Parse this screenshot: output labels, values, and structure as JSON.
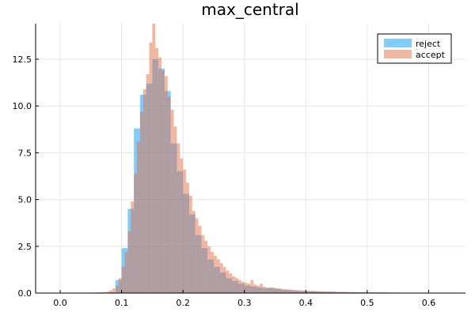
{
  "chart_data": {
    "type": "histogram",
    "title": "max_central",
    "xlabel": "",
    "ylabel": "",
    "xlim": [
      -0.04,
      0.66
    ],
    "ylim": [
      0,
      14.4
    ],
    "grid": true,
    "legend_position": "top-right",
    "bin_edges": [
      0.04,
      0.05,
      0.06,
      0.07,
      0.08,
      0.09,
      0.1,
      0.11,
      0.12,
      0.13,
      0.14,
      0.15,
      0.16,
      0.17,
      0.18,
      0.19,
      0.2,
      0.21,
      0.22,
      0.23,
      0.24,
      0.25,
      0.26,
      0.27,
      0.28,
      0.29,
      0.3,
      0.31,
      0.32,
      0.33,
      0.34,
      0.35,
      0.36,
      0.37,
      0.38,
      0.39,
      0.4,
      0.41,
      0.42,
      0.43,
      0.44,
      0.45,
      0.46,
      0.47,
      0.48,
      0.49,
      0.5,
      0.51,
      0.52,
      0.53,
      0.54,
      0.55,
      0.56,
      0.57,
      0.58,
      0.59,
      0.6,
      0.61,
      0.62,
      0.63,
      0.64
    ],
    "x_ticks": [
      {
        "value": 0.0,
        "label": "0.0"
      },
      {
        "value": 0.1,
        "label": "0.1"
      },
      {
        "value": 0.2,
        "label": "0.2"
      },
      {
        "value": 0.3,
        "label": "0.3"
      },
      {
        "value": 0.4,
        "label": "0.4"
      },
      {
        "value": 0.5,
        "label": "0.5"
      },
      {
        "value": 0.6,
        "label": "0.6"
      }
    ],
    "y_ticks": [
      {
        "value": 0.0,
        "label": "0.0"
      },
      {
        "value": 2.5,
        "label": "2.5"
      },
      {
        "value": 5.0,
        "label": "5.0"
      },
      {
        "value": 7.5,
        "label": "7.5"
      },
      {
        "value": 10.0,
        "label": "10.0"
      },
      {
        "value": 12.5,
        "label": "12.5"
      }
    ],
    "series": [
      {
        "name": "reject",
        "color": "#0099ff",
        "opacity": 0.5,
        "bin_width": 0.01,
        "values": [
          0,
          0,
          0,
          0,
          0.05,
          0.7,
          2.4,
          4.5,
          8.8,
          10.6,
          11.2,
          12.5,
          12.0,
          10.8,
          8.0,
          6.5,
          5.3,
          4.2,
          3.1,
          2.4,
          1.8,
          1.4,
          1.1,
          0.8,
          0.65,
          0.5,
          0.4,
          0.35,
          0.3,
          0.25,
          0.28,
          0.22,
          0.18,
          0.15,
          0.12,
          0.1,
          0.1,
          0.09,
          0.08,
          0.07,
          0.06,
          0.05,
          0.05,
          0.04,
          0.04,
          0.04,
          0.03,
          0.03,
          0.03,
          0.03,
          0.02,
          0.02,
          0.02,
          0.02,
          0.02,
          0.02,
          0.01,
          0.01,
          0.01,
          0.01
        ]
      },
      {
        "name": "accept",
        "color": "#e26f46",
        "opacity": 0.5,
        "bin_width": 0.005,
        "values": [
          0.02,
          0.02,
          0.03,
          0.03,
          0.05,
          0.05,
          0.06,
          0.08,
          0.15,
          0.25,
          0.4,
          0.8,
          1.4,
          2.2,
          3.3,
          4.9,
          6.4,
          8.1,
          9.7,
          10.9,
          11.7,
          13.4,
          14.4,
          13.1,
          12.6,
          11.9,
          11.6,
          10.5,
          9.8,
          8.9,
          8.0,
          7.2,
          6.6,
          5.9,
          5.2,
          4.4,
          4.0,
          3.6,
          3.1,
          2.8,
          2.5,
          2.2,
          2.0,
          1.8,
          1.6,
          1.4,
          1.2,
          1.05,
          0.9,
          0.8,
          0.7,
          0.6,
          0.55,
          0.5,
          0.7,
          0.45,
          0.4,
          0.5,
          0.35,
          0.3,
          0.3,
          0.28,
          0.26,
          0.25,
          0.22,
          0.2,
          0.2,
          0.18,
          0.17,
          0.16,
          0.15,
          0.14,
          0.13,
          0.12,
          0.12,
          0.11,
          0.1,
          0.1,
          0.09,
          0.09,
          0.08,
          0.08,
          0.07,
          0.07,
          0.07,
          0.06,
          0.06,
          0.06,
          0.05,
          0.05,
          0.05,
          0.05,
          0.04,
          0.04,
          0.04,
          0.04,
          0.04,
          0.03,
          0.03,
          0.03,
          0.03,
          0.03,
          0.03,
          0.02,
          0.02,
          0.02,
          0.02,
          0.02,
          0.02,
          0.02,
          0.02,
          0.02,
          0.02,
          0.02,
          0.01,
          0.01,
          0.01,
          0.01,
          0.01,
          0.01
        ]
      }
    ]
  }
}
